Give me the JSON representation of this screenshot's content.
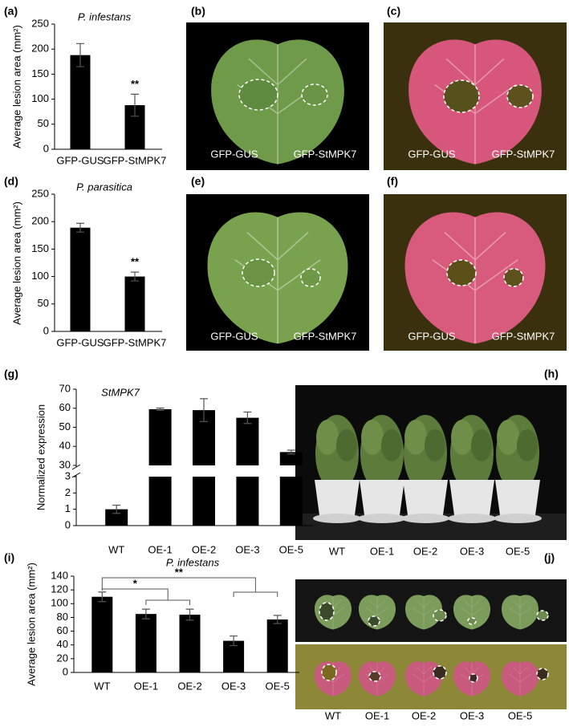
{
  "chart_data": [
    {
      "type": "bar",
      "label": "(a)",
      "title": "P. infestans",
      "y_label": "Average lesion area (mm²)",
      "categories": [
        "GFP-GUS",
        "GFP-StMPK7"
      ],
      "values": [
        188,
        88
      ],
      "errors": [
        23,
        22
      ],
      "color": "#000000",
      "ylim": [
        0,
        250
      ],
      "yticks": [
        0,
        50,
        100,
        150,
        200,
        250
      ],
      "significance": "**"
    },
    {
      "type": "bar",
      "label": "(d)",
      "title": "P. parasitica",
      "y_label": "Average lesion area (mm²)",
      "categories": [
        "GFP-GUS",
        "GFP-StMPK7"
      ],
      "values": [
        189,
        100
      ],
      "errors": [
        8,
        8
      ],
      "color": "#000000",
      "ylim": [
        0,
        250
      ],
      "yticks": [
        0,
        50,
        100,
        150,
        200,
        250
      ],
      "significance": "**"
    },
    {
      "type": "broken_bar",
      "label": "(g)",
      "title": "StMPK7",
      "y_label": "Normalized expression",
      "categories": [
        "WT",
        "OE-1",
        "OE-2",
        "OE-3",
        "OE-5"
      ],
      "values": [
        1,
        59.5,
        59,
        55,
        37
      ],
      "errors": [
        0.25,
        0.6,
        6,
        3,
        1
      ],
      "color": "#000000",
      "ylim_lower": [
        0,
        3
      ],
      "yticks_lower": [
        0,
        1,
        2,
        3
      ],
      "ylim_upper": [
        30,
        70
      ],
      "yticks_upper": [
        30,
        40,
        50,
        60,
        70
      ]
    },
    {
      "type": "bar",
      "label": "(i)",
      "title": "P. infestans",
      "y_label": "Average lesion area (mm²)",
      "categories": [
        "WT",
        "OE-1",
        "OE-2",
        "OE-3",
        "OE-5"
      ],
      "values": [
        110,
        85,
        84,
        46,
        77
      ],
      "errors": [
        7,
        7,
        8,
        7,
        6
      ],
      "color": "#000000",
      "ylim": [
        0,
        140
      ],
      "yticks": [
        0,
        20,
        40,
        60,
        80,
        100,
        120,
        140
      ],
      "significance": [
        "*",
        "**"
      ]
    }
  ],
  "photos": [
    {
      "label": "(b)",
      "captions": [
        "GFP-GUS",
        "GFP-StMPK7"
      ]
    },
    {
      "label": "(c)",
      "captions": [
        "GFP-GUS",
        "GFP-StMPK7"
      ]
    },
    {
      "label": "(e)",
      "captions": [
        "GFP-GUS",
        "GFP-StMPK7"
      ]
    },
    {
      "label": "(f)",
      "captions": [
        "GFP-GUS",
        "GFP-StMPK7"
      ]
    },
    {
      "label": "(h)",
      "captions": [
        "WT",
        "OE-1",
        "OE-2",
        "OE-3",
        "OE-5"
      ]
    },
    {
      "label": "(j)",
      "captions": [
        "WT",
        "OE-1",
        "OE-2",
        "OE-3",
        "OE-5"
      ]
    }
  ]
}
